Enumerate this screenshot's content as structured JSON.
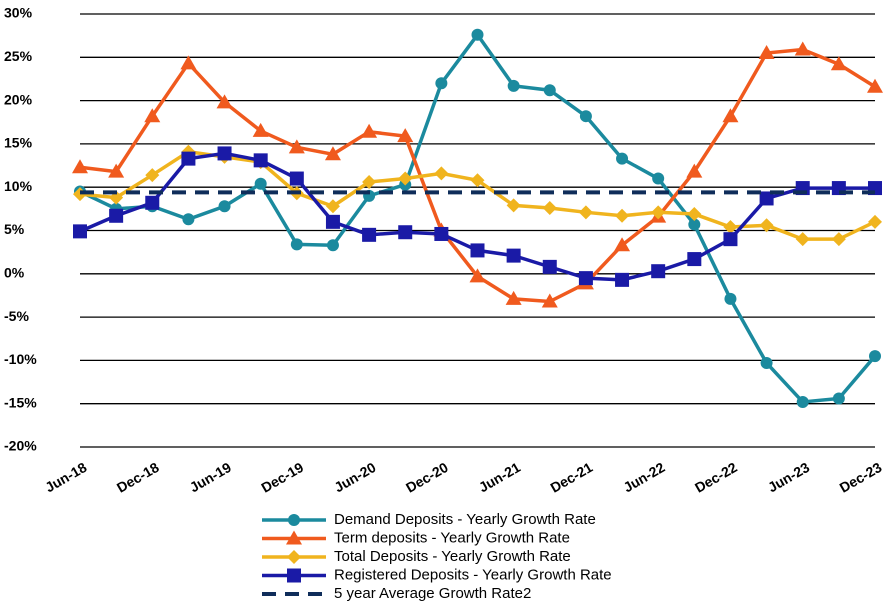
{
  "chart_data": {
    "type": "line",
    "categories": [
      "Jun-18",
      null,
      "Dec-18",
      null,
      "Jun-19",
      null,
      "Dec-19",
      null,
      "Jun-20",
      null,
      "Dec-20",
      null,
      "Jun-21",
      null,
      "Dec-21",
      null,
      "Jun-22",
      null,
      "Dec-22",
      null,
      "Jun-23",
      null,
      "Dec-23"
    ],
    "ylim": [
      -20,
      30
    ],
    "yticks": [
      {
        "value": -20,
        "label": "-20%"
      },
      {
        "value": -15,
        "label": "-15%"
      },
      {
        "value": -10,
        "label": "-10%"
      },
      {
        "value": -5,
        "label": "-5%"
      },
      {
        "value": 0,
        "label": "0%"
      },
      {
        "value": 5,
        "label": "5%"
      },
      {
        "value": 10,
        "label": "10%"
      },
      {
        "value": 15,
        "label": "15%"
      },
      {
        "value": 20,
        "label": "20%"
      },
      {
        "value": 25,
        "label": "25%"
      },
      {
        "value": 30,
        "label": "30%"
      }
    ],
    "grid": true,
    "series": [
      {
        "name": "Demand Deposits - Yearly Growth Rate",
        "color": "#1b8a9e",
        "marker": "circle",
        "values": [
          9.5,
          7.5,
          7.8,
          6.3,
          7.8,
          10.4,
          3.4,
          3.3,
          9,
          10.3,
          22,
          27.6,
          21.7,
          21.2,
          18.2,
          13.3,
          11,
          5.7,
          -2.9,
          -10.3,
          -14.8,
          -14.4,
          -9.5
        ]
      },
      {
        "name": "Term deposits - Yearly Growth Rate",
        "color": "#f05a1e",
        "marker": "triangle",
        "values": [
          12.3,
          11.8,
          18.2,
          24.3,
          19.8,
          16.5,
          14.6,
          13.8,
          16.4,
          15.9,
          5.0,
          -0.3,
          -2.9,
          -3.2,
          -1.1,
          3.3,
          6.6,
          11.8,
          18.2,
          25.5,
          25.9,
          24.2,
          21.6
        ]
      },
      {
        "name": "Total Deposits - Yearly Growth Rate",
        "color": "#f0b41e",
        "marker": "diamond",
        "values": [
          9.2,
          8.8,
          11.4,
          14.1,
          13.5,
          12.9,
          9.3,
          7.8,
          10.6,
          11,
          11.6,
          10.8,
          7.9,
          7.6,
          7.1,
          6.7,
          7.1,
          6.9,
          5.4,
          5.6,
          4,
          4,
          6
        ]
      },
      {
        "name": "Registered Deposits - Yearly Growth Rate",
        "color": "#1a1aa6",
        "marker": "square",
        "values": [
          4.9,
          6.7,
          8.2,
          13.3,
          13.9,
          13.1,
          11,
          6,
          4.5,
          4.8,
          4.6,
          2.7,
          2.1,
          0.8,
          -0.5,
          -0.7,
          0.3,
          1.7,
          4,
          8.7,
          9.9,
          9.9,
          9.9
        ]
      },
      {
        "name": "5 year Average Growth Rate2",
        "color": "#0f2d5a",
        "dashed": true,
        "values": [
          9.4,
          9.4,
          9.4,
          9.4,
          9.4,
          9.4,
          9.4,
          9.4,
          9.4,
          9.4,
          9.4,
          9.4,
          9.4,
          9.4,
          9.4,
          9.4,
          9.4,
          9.4,
          9.4,
          9.4,
          9.4,
          9.4,
          9.4
        ]
      }
    ]
  }
}
